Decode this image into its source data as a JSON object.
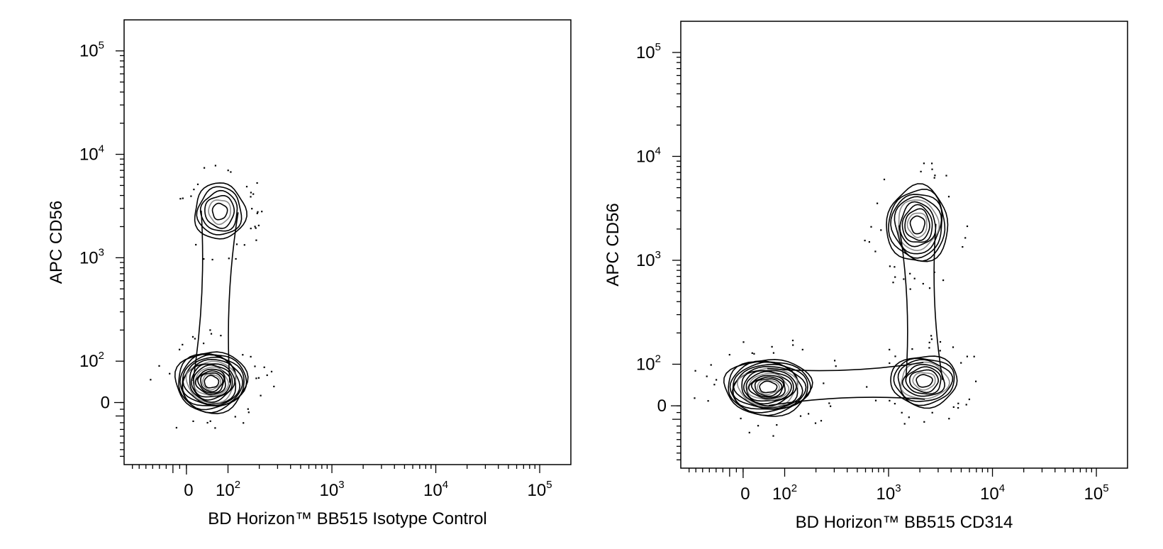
{
  "chart_data": [
    {
      "type": "contour",
      "xlabel": "BD Horizon™ BB515 Isotype Control",
      "ylabel": "APC CD56",
      "x_ticks": [
        {
          "value": 0,
          "base": "0",
          "exp": ""
        },
        {
          "value": 100,
          "base": "10",
          "exp": "2"
        },
        {
          "value": 1000,
          "base": "10",
          "exp": "3"
        },
        {
          "value": 10000,
          "base": "10",
          "exp": "4"
        },
        {
          "value": 100000,
          "base": "10",
          "exp": "5"
        }
      ],
      "y_ticks": [
        {
          "value": 0,
          "base": "0",
          "exp": ""
        },
        {
          "value": 100,
          "base": "10",
          "exp": "2"
        },
        {
          "value": 1000,
          "base": "10",
          "exp": "3"
        },
        {
          "value": 10000,
          "base": "10",
          "exp": "4"
        },
        {
          "value": 100000,
          "base": "10",
          "exp": "5"
        }
      ],
      "populations": [
        {
          "x": 60,
          "y": 50,
          "sx": 0.28,
          "sy": 0.24,
          "levels": 16
        },
        {
          "x": 80,
          "y": 2800,
          "sx": 0.2,
          "sy": 0.22,
          "levels": 6
        }
      ]
    },
    {
      "type": "contour",
      "xlabel": "BD Horizon™ BB515 CD314",
      "ylabel": "APC CD56",
      "x_ticks": [
        {
          "value": 0,
          "base": "0",
          "exp": ""
        },
        {
          "value": 100,
          "base": "10",
          "exp": "2"
        },
        {
          "value": 1000,
          "base": "10",
          "exp": "3"
        },
        {
          "value": 10000,
          "base": "10",
          "exp": "4"
        },
        {
          "value": 100000,
          "base": "10",
          "exp": "5"
        }
      ],
      "y_ticks": [
        {
          "value": 0,
          "base": "0",
          "exp": ""
        },
        {
          "value": 100,
          "base": "10",
          "exp": "2"
        },
        {
          "value": 1000,
          "base": "10",
          "exp": "3"
        },
        {
          "value": 10000,
          "base": "10",
          "exp": "4"
        },
        {
          "value": 100000,
          "base": "10",
          "exp": "5"
        }
      ],
      "populations": [
        {
          "x": 60,
          "y": 45,
          "sx": 0.34,
          "sy": 0.22,
          "levels": 16
        },
        {
          "x": 2200,
          "y": 60,
          "sx": 0.26,
          "sy": 0.2,
          "levels": 9
        },
        {
          "x": 1900,
          "y": 2200,
          "sx": 0.24,
          "sy": 0.3,
          "levels": 10
        }
      ]
    }
  ]
}
